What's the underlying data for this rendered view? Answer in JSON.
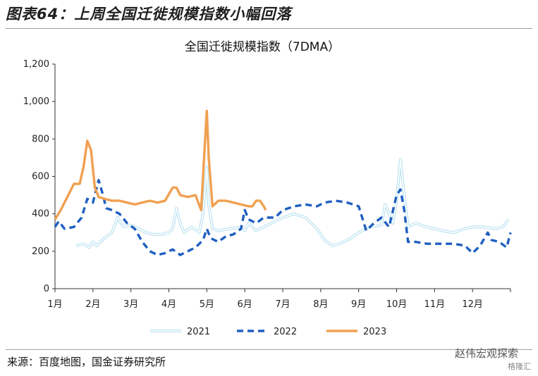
{
  "header": {
    "figure_title": "图表64：上周全国迁徙规模指数小幅回落"
  },
  "footer": {
    "source": "来源：百度地图，国金证券研究所",
    "watermark": "赵伟宏观探索",
    "watermark_sub": "格隆汇"
  },
  "colors": {
    "s2021": "#BDE3F2",
    "s2022": "#1F5FBF",
    "s2023": "#F0A050"
  },
  "chart_data": {
    "type": "line",
    "title": "全国迁徙规模指数（7DMA）",
    "xlabel": "",
    "ylabel": "",
    "ylim": [
      0,
      1200
    ],
    "yticks": [
      "0",
      "200",
      "400",
      "600",
      "800",
      "1,000",
      "1,200"
    ],
    "ytick_values": [
      0,
      200,
      400,
      600,
      800,
      1000,
      1200
    ],
    "xlim": [
      1,
      13
    ],
    "xticks": [
      "1月",
      "2月",
      "3月",
      "4月",
      "5月",
      "6月",
      "7月",
      "8月",
      "9月",
      "10月",
      "11月",
      "12月"
    ],
    "grid": false,
    "legend_position": "bottom",
    "series": [
      {
        "name": "2021",
        "style": "double-line",
        "x": [
          1.55,
          1.75,
          1.9,
          2.0,
          2.1,
          2.3,
          2.5,
          2.65,
          2.8,
          3.0,
          3.2,
          3.4,
          3.6,
          3.8,
          4.0,
          4.1,
          4.2,
          4.3,
          4.4,
          4.6,
          4.8,
          4.9,
          5.0,
          5.05,
          5.15,
          5.3,
          5.6,
          5.9,
          6.0,
          6.1,
          6.3,
          6.5,
          6.7,
          7.0,
          7.3,
          7.6,
          7.9,
          8.1,
          8.3,
          8.5,
          8.8,
          9.0,
          9.3,
          9.6,
          9.7,
          9.9,
          10.0,
          10.1,
          10.2,
          10.3,
          10.5,
          10.8,
          11.2,
          11.5,
          11.8,
          12.0,
          12.3,
          12.6,
          12.8,
          12.95
        ],
        "values": [
          230,
          240,
          220,
          250,
          230,
          270,
          300,
          380,
          330,
          340,
          320,
          300,
          290,
          290,
          300,
          320,
          430,
          350,
          300,
          330,
          300,
          400,
          650,
          450,
          320,
          310,
          320,
          330,
          310,
          350,
          310,
          330,
          350,
          380,
          400,
          380,
          320,
          260,
          230,
          240,
          270,
          300,
          330,
          340,
          450,
          350,
          470,
          690,
          500,
          330,
          350,
          330,
          310,
          300,
          320,
          330,
          330,
          320,
          330,
          370
        ]
      },
      {
        "name": "2022",
        "style": "dashed",
        "x": [
          1.0,
          1.1,
          1.25,
          1.5,
          1.7,
          1.85,
          2.0,
          2.15,
          2.25,
          2.35,
          2.5,
          2.7,
          2.9,
          3.1,
          3.3,
          3.5,
          3.7,
          3.9,
          4.1,
          4.3,
          4.5,
          4.7,
          4.9,
          5.0,
          5.1,
          5.3,
          5.5,
          5.7,
          5.9,
          6.0,
          6.1,
          6.3,
          6.5,
          6.8,
          7.0,
          7.3,
          7.6,
          7.9,
          8.1,
          8.4,
          8.7,
          9.0,
          9.2,
          9.4,
          9.6,
          9.8,
          10.0,
          10.1,
          10.2,
          10.3,
          10.5,
          10.8,
          11.2,
          11.5,
          11.8,
          12.0,
          12.2,
          12.4,
          12.5,
          12.7,
          12.9,
          13.0
        ],
        "values": [
          330,
          360,
          320,
          330,
          380,
          480,
          460,
          580,
          510,
          430,
          420,
          400,
          350,
          320,
          250,
          200,
          180,
          190,
          210,
          180,
          200,
          220,
          260,
          320,
          270,
          250,
          280,
          290,
          320,
          420,
          370,
          350,
          380,
          380,
          420,
          440,
          450,
          440,
          460,
          470,
          460,
          440,
          310,
          350,
          380,
          330,
          500,
          530,
          420,
          250,
          250,
          240,
          240,
          240,
          230,
          190,
          230,
          300,
          260,
          250,
          220,
          300
        ]
      },
      {
        "name": "2023",
        "style": "solid",
        "x": [
          1.0,
          1.15,
          1.3,
          1.5,
          1.65,
          1.75,
          1.85,
          1.95,
          2.05,
          2.15,
          2.3,
          2.5,
          2.7,
          2.9,
          3.1,
          3.3,
          3.5,
          3.7,
          3.9,
          4.1,
          4.2,
          4.3,
          4.5,
          4.7,
          4.85,
          4.95,
          5.0,
          5.05,
          5.15,
          5.3,
          5.5,
          5.7,
          5.9,
          6.1,
          6.2,
          6.3,
          6.4,
          6.5,
          6.55
        ],
        "values": [
          370,
          420,
          480,
          560,
          560,
          650,
          790,
          740,
          540,
          490,
          480,
          470,
          470,
          460,
          450,
          460,
          470,
          460,
          470,
          540,
          540,
          500,
          490,
          500,
          420,
          780,
          950,
          700,
          440,
          470,
          470,
          460,
          450,
          440,
          440,
          470,
          470,
          440,
          420
        ]
      }
    ]
  }
}
